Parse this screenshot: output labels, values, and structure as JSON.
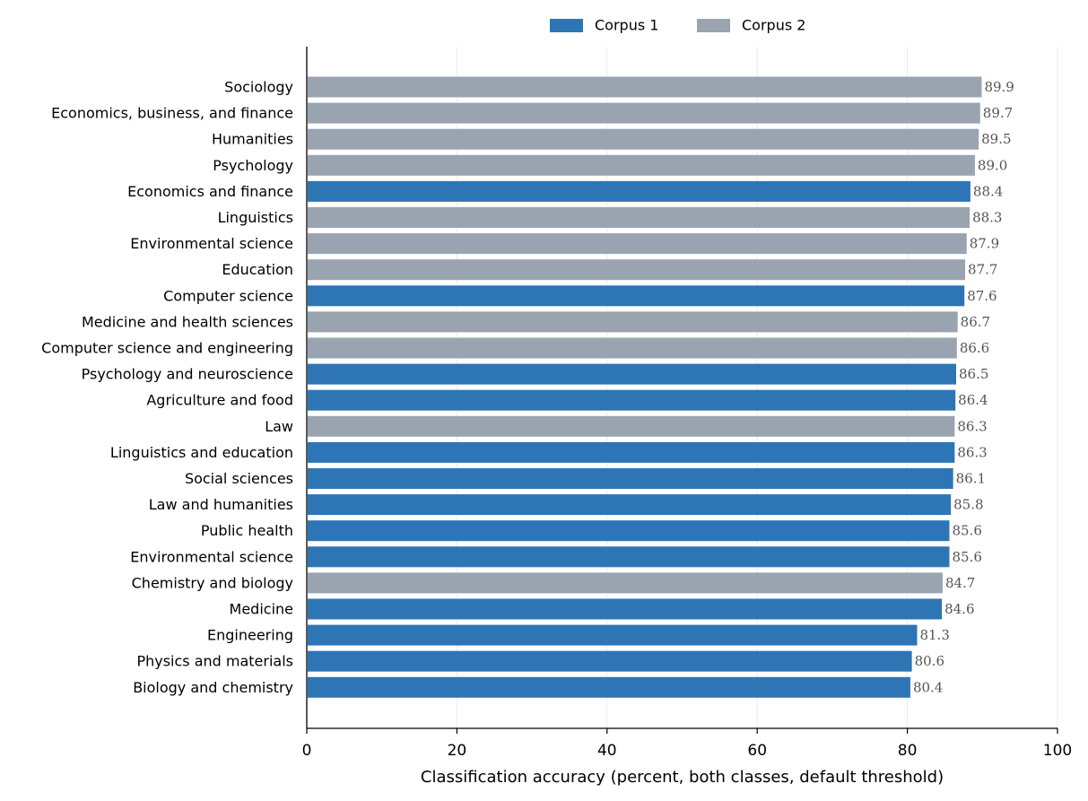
{
  "chart_data": {
    "type": "bar",
    "orientation": "horizontal",
    "xlabel": "Classification accuracy (percent, both classes, default threshold)",
    "ylabel": "",
    "xlim": [
      0,
      100
    ],
    "xticks": [
      0,
      20,
      40,
      60,
      80,
      100
    ],
    "grid": "vertical",
    "legend_position": "top-center",
    "series": [
      {
        "name": "Corpus 1",
        "color": "#2e75b6"
      },
      {
        "name": "Corpus 2",
        "color": "#9aa4b0"
      }
    ],
    "bars": [
      {
        "category": "Sociology",
        "value": 89.9,
        "series": "Corpus 2",
        "label": "89.9"
      },
      {
        "category": "Economics, business, and finance",
        "value": 89.7,
        "series": "Corpus 2",
        "label": "89.7"
      },
      {
        "category": "Humanities",
        "value": 89.5,
        "series": "Corpus 2",
        "label": "89.5"
      },
      {
        "category": "Psychology",
        "value": 89.0,
        "series": "Corpus 2",
        "label": "89.0"
      },
      {
        "category": "Economics and finance",
        "value": 88.4,
        "series": "Corpus 1",
        "label": "88.4"
      },
      {
        "category": "Linguistics",
        "value": 88.3,
        "series": "Corpus 2",
        "label": "88.3"
      },
      {
        "category": "Environmental science",
        "value": 87.9,
        "series": "Corpus 2",
        "label": "87.9"
      },
      {
        "category": "Education",
        "value": 87.7,
        "series": "Corpus 2",
        "label": "87.7"
      },
      {
        "category": "Computer science",
        "value": 87.6,
        "series": "Corpus 1",
        "label": "87.6"
      },
      {
        "category": "Medicine and health sciences",
        "value": 86.7,
        "series": "Corpus 2",
        "label": "86.7"
      },
      {
        "category": "Computer science and engineering",
        "value": 86.6,
        "series": "Corpus 2",
        "label": "86.6"
      },
      {
        "category": "Psychology and neuroscience",
        "value": 86.5,
        "series": "Corpus 1",
        "label": "86.5"
      },
      {
        "category": "Agriculture and food",
        "value": 86.4,
        "series": "Corpus 1",
        "label": "86.4"
      },
      {
        "category": "Law",
        "value": 86.3,
        "series": "Corpus 2",
        "label": "86.3"
      },
      {
        "category": "Linguistics and education",
        "value": 86.3,
        "series": "Corpus 1",
        "label": "86.3"
      },
      {
        "category": "Social sciences",
        "value": 86.1,
        "series": "Corpus 1",
        "label": "86.1"
      },
      {
        "category": "Law and humanities",
        "value": 85.8,
        "series": "Corpus 1",
        "label": "85.8"
      },
      {
        "category": "Public health",
        "value": 85.6,
        "series": "Corpus 1",
        "label": "85.6"
      },
      {
        "category": "Environmental science",
        "value": 85.6,
        "series": "Corpus 1",
        "label": "85.6"
      },
      {
        "category": "Chemistry and biology",
        "value": 84.7,
        "series": "Corpus 2",
        "label": "84.7"
      },
      {
        "category": "Medicine",
        "value": 84.6,
        "series": "Corpus 1",
        "label": "84.6"
      },
      {
        "category": "Engineering",
        "value": 81.3,
        "series": "Corpus 1",
        "label": "81.3"
      },
      {
        "category": "Physics and materials",
        "value": 80.6,
        "series": "Corpus 1",
        "label": "80.6"
      },
      {
        "category": "Biology and chemistry",
        "value": 80.4,
        "series": "Corpus 1",
        "label": "80.4"
      }
    ]
  }
}
